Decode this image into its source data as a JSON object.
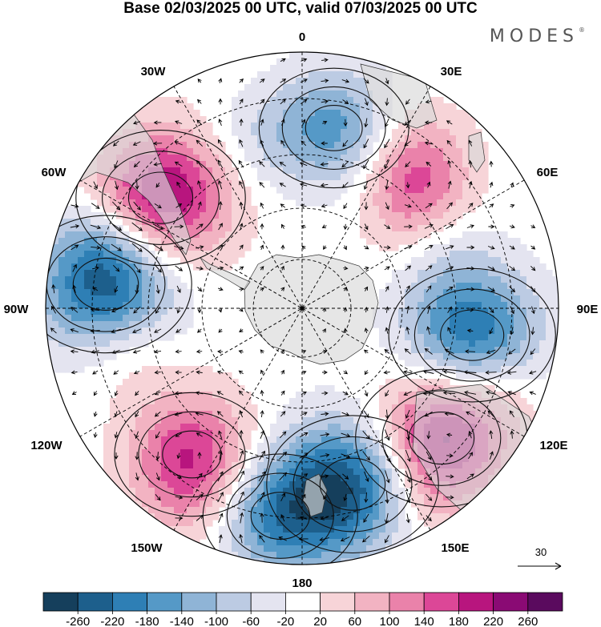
{
  "title": "Base 02/03/2025 00 UTC, valid 07/03/2025 00 UTC",
  "brand": "MODES",
  "brand_mark": "®",
  "longitude_labels": {
    "lon_0": "0",
    "lon_30e": "30E",
    "lon_60e": "60E",
    "lon_90e": "90E",
    "lon_120e": "120E",
    "lon_150e": "150E",
    "lon_180": "180",
    "lon_150w": "150W",
    "lon_120w": "120W",
    "lon_90w": "90W",
    "lon_60w": "60W",
    "lon_30w": "30W"
  },
  "reference_vector": {
    "label": "30"
  },
  "colorbar": {
    "ticks": [
      "-260",
      "-220",
      "-180",
      "-140",
      "-100",
      "-60",
      "-20",
      "20",
      "60",
      "100",
      "140",
      "180",
      "220",
      "260"
    ],
    "colors": [
      "#153f5c",
      "#1d5f8c",
      "#2e7fb5",
      "#5599c7",
      "#8fb4d6",
      "#bccbe3",
      "#e4e4f0",
      "#ffffff",
      "#f7d4d8",
      "#f2b3c2",
      "#ea82aa",
      "#dc4797",
      "#b8157e",
      "#8a0a74",
      "#5a0a5e"
    ]
  },
  "anomalies": [
    {
      "lon": 10,
      "lat": -40,
      "value": -160
    },
    {
      "lon": -15,
      "lat": -42,
      "value": -50
    },
    {
      "lon": 38,
      "lat": -40,
      "value": 120
    },
    {
      "lon": 48,
      "lat": -49,
      "value": 70
    },
    {
      "lon": -52,
      "lat": -41,
      "value": 240
    },
    {
      "lon": -70,
      "lat": -33,
      "value": -40
    },
    {
      "lon": -83,
      "lat": -36,
      "value": -250
    },
    {
      "lon": 99,
      "lat": -43,
      "value": -230
    },
    {
      "lon": 70,
      "lat": -48,
      "value": -40
    },
    {
      "lon": 133,
      "lat": -38,
      "value": 250
    },
    {
      "lon": 112,
      "lat": -34,
      "value": 50
    },
    {
      "lon": 164,
      "lat": -40,
      "value": -250
    },
    {
      "lon": -174,
      "lat": -33,
      "value": -180
    },
    {
      "lon": -143,
      "lat": -40,
      "value": 180
    },
    {
      "lon": -103,
      "lat": -41,
      "value": 60
    },
    {
      "lon": -150,
      "lat": -27,
      "value": 40
    },
    {
      "lon": 150,
      "lat": -28,
      "value": 40
    }
  ]
}
